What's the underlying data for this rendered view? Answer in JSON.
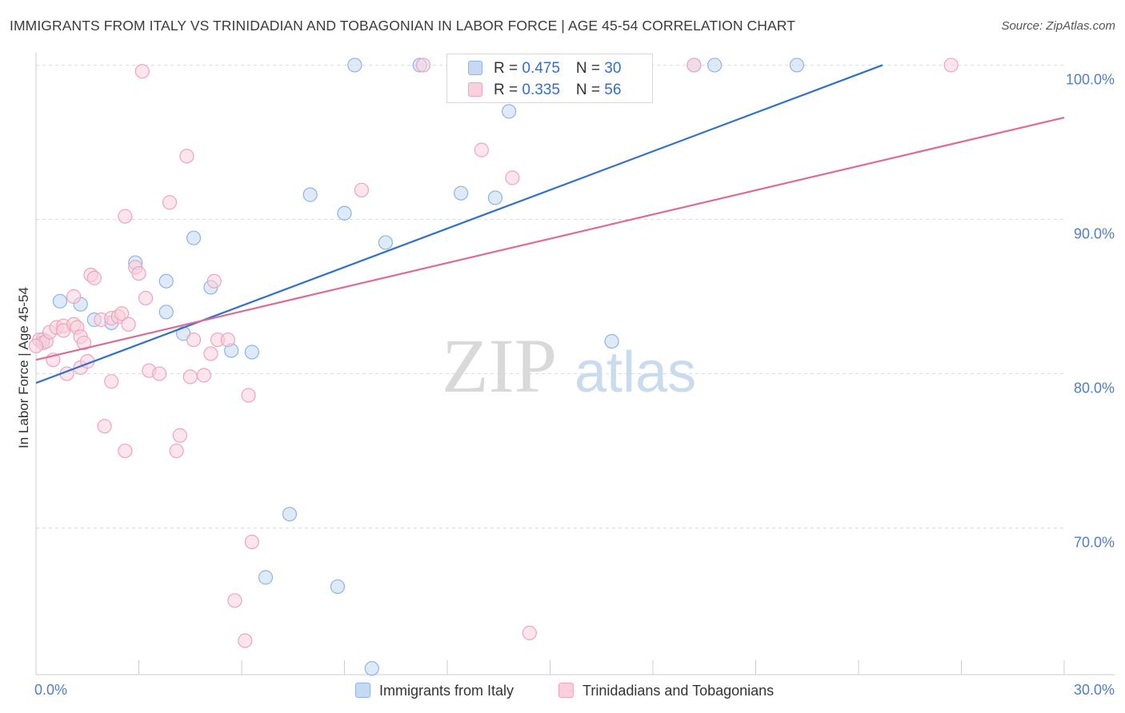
{
  "header": {
    "title": "IMMIGRANTS FROM ITALY VS TRINIDADIAN AND TOBAGONIAN IN LABOR FORCE | AGE 45-54 CORRELATION CHART",
    "source": "Source: ZipAtlas.com"
  },
  "watermark": {
    "zip": "ZIP",
    "atlas": "atlas"
  },
  "legend": {
    "rows": [
      {
        "r_label": "R = ",
        "r_value": "0.475",
        "n_label": "N = ",
        "n_value": "30"
      },
      {
        "r_label": "R = ",
        "r_value": "0.335",
        "n_label": "N = ",
        "n_value": "56"
      }
    ]
  },
  "chart_data": {
    "type": "scatter",
    "ylabel": "In Labor Force | Age 45-54",
    "xlim": [
      0,
      30
    ],
    "ylim": [
      60.5,
      100.8
    ],
    "y_ticks": [
      {
        "value": 100,
        "label": "100.0%"
      },
      {
        "value": 90,
        "label": "90.0%"
      },
      {
        "value": 80,
        "label": "80.0%"
      },
      {
        "value": 70,
        "label": "70.0%"
      }
    ],
    "x_tick_labels": [
      {
        "value": 0,
        "label": "0.0%"
      },
      {
        "value": 30,
        "label": "30.0%"
      }
    ],
    "grid": true,
    "legend_position": "top-center",
    "series": [
      {
        "name": "Immigrants from Italy",
        "color": "#8db4e8",
        "fill": "#c5d9f3",
        "line_color": "#2f6fd0",
        "trend": {
          "x": [
            0,
            24.7
          ],
          "y": [
            79.4,
            100.0
          ]
        },
        "points": [
          [
            0.2,
            82.2
          ],
          [
            0.7,
            84.7
          ],
          [
            1.3,
            84.5
          ],
          [
            1.7,
            83.5
          ],
          [
            2.2,
            83.3
          ],
          [
            2.9,
            87.2
          ],
          [
            3.8,
            86.0
          ],
          [
            3.8,
            84.0
          ],
          [
            4.3,
            82.6
          ],
          [
            4.6,
            88.8
          ],
          [
            5.1,
            85.6
          ],
          [
            5.7,
            81.5
          ],
          [
            6.3,
            81.4
          ],
          [
            7.4,
            70.9
          ],
          [
            6.7,
            66.8
          ],
          [
            8.0,
            91.6
          ],
          [
            8.8,
            66.2
          ],
          [
            9.0,
            90.4
          ],
          [
            9.3,
            100.0
          ],
          [
            10.2,
            88.5
          ],
          [
            9.8,
            60.9
          ],
          [
            11.2,
            100.0
          ],
          [
            12.4,
            91.7
          ],
          [
            13.4,
            91.4
          ],
          [
            13.8,
            97.0
          ],
          [
            16.3,
            100.0
          ],
          [
            16.8,
            82.1
          ],
          [
            19.2,
            100.0
          ],
          [
            19.8,
            100.0
          ],
          [
            22.2,
            100.0
          ]
        ]
      },
      {
        "name": "Trinidadians and Tobagonians",
        "color": "#f0a4bc",
        "fill": "#f9d0dc",
        "line_color": "#e06a93",
        "trend": {
          "x": [
            0,
            30
          ],
          "y": [
            80.9,
            96.6
          ]
        },
        "points": [
          [
            0.1,
            82.2
          ],
          [
            0.2,
            82.0
          ],
          [
            0.3,
            82.1
          ],
          [
            0.4,
            82.7
          ],
          [
            0.5,
            80.9
          ],
          [
            0.6,
            83.0
          ],
          [
            0.8,
            83.1
          ],
          [
            0.8,
            82.8
          ],
          [
            0.9,
            80.0
          ],
          [
            1.1,
            83.2
          ],
          [
            1.1,
            85.0
          ],
          [
            1.2,
            83.0
          ],
          [
            1.3,
            82.4
          ],
          [
            1.3,
            80.4
          ],
          [
            1.4,
            82.0
          ],
          [
            1.5,
            80.8
          ],
          [
            1.6,
            86.4
          ],
          [
            1.7,
            86.2
          ],
          [
            1.9,
            83.5
          ],
          [
            2.0,
            76.6
          ],
          [
            2.2,
            79.5
          ],
          [
            2.2,
            83.6
          ],
          [
            2.4,
            83.7
          ],
          [
            2.5,
            83.9
          ],
          [
            2.6,
            75.0
          ],
          [
            2.6,
            90.2
          ],
          [
            2.7,
            83.2
          ],
          [
            2.9,
            86.9
          ],
          [
            3.0,
            86.5
          ],
          [
            3.1,
            99.6
          ],
          [
            3.2,
            84.9
          ],
          [
            3.3,
            80.2
          ],
          [
            3.6,
            80.0
          ],
          [
            3.9,
            91.1
          ],
          [
            4.1,
            75.0
          ],
          [
            4.2,
            76.0
          ],
          [
            4.4,
            94.1
          ],
          [
            4.5,
            79.8
          ],
          [
            4.6,
            82.2
          ],
          [
            4.9,
            79.9
          ],
          [
            5.1,
            81.3
          ],
          [
            5.2,
            86.0
          ],
          [
            5.3,
            82.2
          ],
          [
            5.6,
            82.2
          ],
          [
            5.8,
            65.3
          ],
          [
            6.1,
            62.7
          ],
          [
            6.2,
            78.6
          ],
          [
            6.3,
            69.1
          ],
          [
            9.5,
            91.9
          ],
          [
            11.3,
            100.0
          ],
          [
            13.0,
            94.5
          ],
          [
            13.9,
            92.7
          ],
          [
            14.4,
            63.2
          ],
          [
            19.2,
            100.0
          ],
          [
            26.7,
            100.0
          ],
          [
            0.0,
            81.8
          ]
        ]
      }
    ]
  }
}
